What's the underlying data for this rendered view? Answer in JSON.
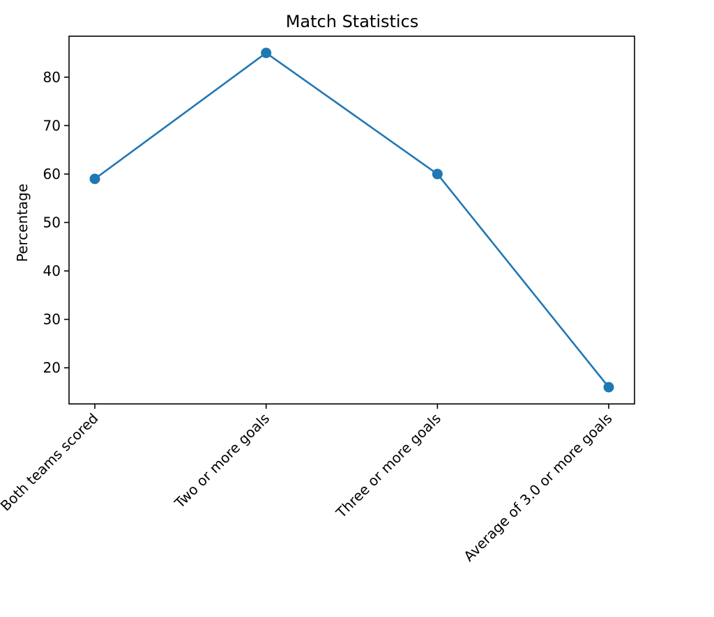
{
  "chart_data": {
    "type": "line",
    "title": "Match Statistics",
    "xlabel": "",
    "ylabel": "Percentage",
    "categories": [
      "Both teams scored",
      "Two or more goals",
      "Three or more goals",
      "Average of 3.0 or more goals"
    ],
    "series": [
      {
        "values": [
          59,
          85,
          60,
          16
        ],
        "color": "#1f77b4"
      }
    ],
    "ylim": [
      12.55,
      88.45
    ],
    "yticks": [
      20,
      30,
      40,
      50,
      60,
      70,
      80
    ],
    "grid": false,
    "marker": "circle"
  }
}
